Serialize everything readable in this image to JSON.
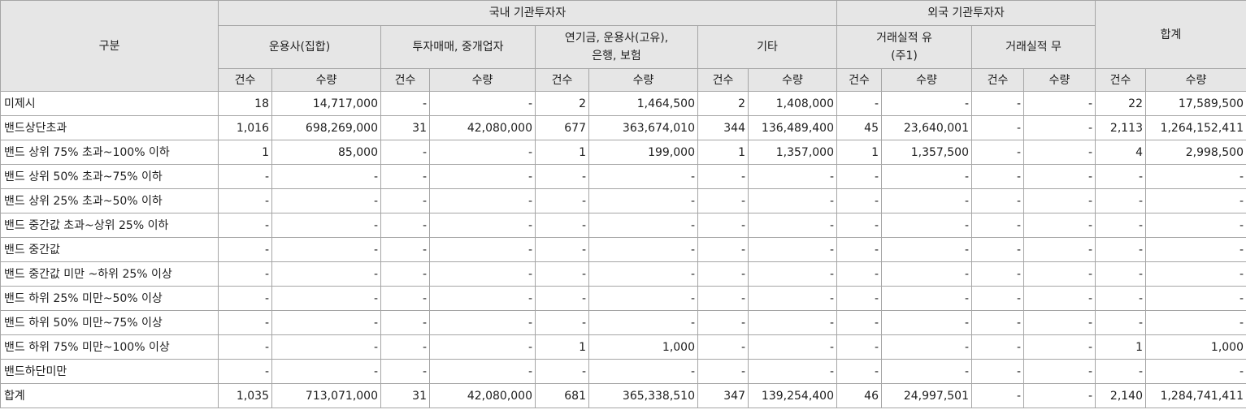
{
  "header": {
    "category": "구분",
    "domestic": "국내 기관투자자",
    "foreign": "외국 기관투자자",
    "total": "합계",
    "groups": {
      "asset_mgmt": "운용사(집합)",
      "dealer": "투자매매, 중개업자",
      "pension_line1": "연기금, 운용사(고유),",
      "pension_line2": "은행, 보험",
      "other": "기타",
      "foreign_with_line1": "거래실적 유",
      "foreign_with_line2": "(주1)",
      "foreign_without": "거래실적 무"
    },
    "count": "건수",
    "quantity": "수량"
  },
  "rows": [
    {
      "label": "미제시",
      "cells": [
        "18",
        "14,717,000",
        "-",
        "-",
        "2",
        "1,464,500",
        "2",
        "1,408,000",
        "-",
        "-",
        "-",
        "-",
        "22",
        "17,589,500"
      ]
    },
    {
      "label": "밴드상단초과",
      "cells": [
        "1,016",
        "698,269,000",
        "31",
        "42,080,000",
        "677",
        "363,674,010",
        "344",
        "136,489,400",
        "45",
        "23,640,001",
        "-",
        "-",
        "2,113",
        "1,264,152,411"
      ]
    },
    {
      "label": "밴드 상위 75% 초과~100% 이하",
      "cells": [
        "1",
        "85,000",
        "-",
        "-",
        "1",
        "199,000",
        "1",
        "1,357,000",
        "1",
        "1,357,500",
        "-",
        "-",
        "4",
        "2,998,500"
      ]
    },
    {
      "label": "밴드 상위 50% 초과~75% 이하",
      "cells": [
        "-",
        "-",
        "-",
        "-",
        "-",
        "-",
        "-",
        "-",
        "-",
        "-",
        "-",
        "-",
        "-",
        "-"
      ]
    },
    {
      "label": "밴드 상위 25% 초과~50% 이하",
      "cells": [
        "-",
        "-",
        "-",
        "-",
        "-",
        "-",
        "-",
        "-",
        "-",
        "-",
        "-",
        "-",
        "-",
        "-"
      ]
    },
    {
      "label": "밴드 중간값 초과~상위 25% 이하",
      "cells": [
        "-",
        "-",
        "-",
        "-",
        "-",
        "-",
        "-",
        "-",
        "-",
        "-",
        "-",
        "-",
        "-",
        "-"
      ]
    },
    {
      "label": "밴드 중간값",
      "cells": [
        "-",
        "-",
        "-",
        "-",
        "-",
        "-",
        "-",
        "-",
        "-",
        "-",
        "-",
        "-",
        "-",
        "-"
      ]
    },
    {
      "label": "밴드 중간값 미만 ~하위 25% 이상",
      "cells": [
        "-",
        "-",
        "-",
        "-",
        "-",
        "-",
        "-",
        "-",
        "-",
        "-",
        "-",
        "-",
        "-",
        "-"
      ]
    },
    {
      "label": "밴드 하위 25% 미만~50% 이상",
      "cells": [
        "-",
        "-",
        "-",
        "-",
        "-",
        "-",
        "-",
        "-",
        "-",
        "-",
        "-",
        "-",
        "-",
        "-"
      ]
    },
    {
      "label": "밴드 하위 50% 미만~75% 이상",
      "cells": [
        "-",
        "-",
        "-",
        "-",
        "-",
        "-",
        "-",
        "-",
        "-",
        "-",
        "-",
        "-",
        "-",
        "-"
      ]
    },
    {
      "label": "밴드 하위 75% 미만~100% 이상",
      "cells": [
        "-",
        "-",
        "-",
        "-",
        "1",
        "1,000",
        "-",
        "-",
        "-",
        "-",
        "-",
        "-",
        "1",
        "1,000"
      ]
    },
    {
      "label": "밴드하단미만",
      "cells": [
        "-",
        "-",
        "-",
        "-",
        "-",
        "-",
        "-",
        "-",
        "-",
        "-",
        "-",
        "-",
        "-",
        "-"
      ]
    },
    {
      "label": "합계",
      "cells": [
        "1,035",
        "713,071,000",
        "31",
        "42,080,000",
        "681",
        "365,338,510",
        "347",
        "139,254,400",
        "46",
        "24,997,501",
        "-",
        "-",
        "2,140",
        "1,284,741,411"
      ]
    }
  ]
}
